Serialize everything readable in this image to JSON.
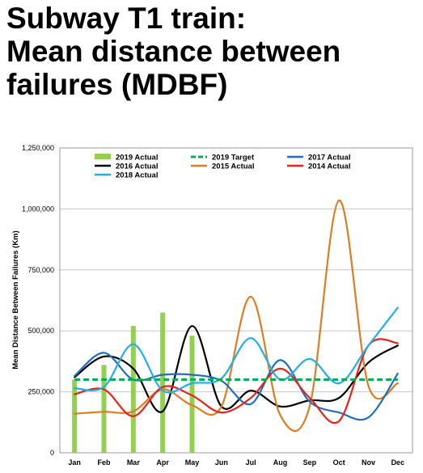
{
  "title_lines": [
    "Subway T1 train:",
    "Mean distance between",
    "failures (MDBF)"
  ],
  "chart_data": {
    "type": "line",
    "ylabel": "Mean Distance Between Failures (Km)",
    "xlabel": "",
    "ylim": [
      0,
      1250000
    ],
    "yticks": [
      0,
      250000,
      500000,
      750000,
      1000000,
      1250000
    ],
    "ytick_labels": [
      "0",
      "250,000",
      "500,000",
      "750,000",
      "1,000,000",
      "1,250,000"
    ],
    "categories": [
      "Jan",
      "Feb",
      "Mar",
      "Apr",
      "May",
      "Jun",
      "Jul",
      "Aug",
      "Sep",
      "Oct",
      "Nov",
      "Dec"
    ],
    "grid": true,
    "legend_placement": "top",
    "bars": {
      "name": "2019 Actual",
      "color": "#92d050",
      "values": [
        300000,
        360000,
        520000,
        575000,
        480000,
        null,
        null,
        null,
        null,
        null,
        null,
        null
      ]
    },
    "target": {
      "name": "2019 Target",
      "color": "#00b050",
      "value": 300000
    },
    "series": [
      {
        "name": "2016 Actual",
        "color": "#000000",
        "values": [
          310000,
          395000,
          345000,
          170000,
          520000,
          190000,
          255000,
          190000,
          215000,
          225000,
          370000,
          440000
        ]
      },
      {
        "name": "2015 Actual",
        "color": "#e07b20",
        "values": [
          160000,
          168000,
          170000,
          260000,
          195000,
          190000,
          640000,
          155000,
          190000,
          1035000,
          275000,
          285000
        ]
      },
      {
        "name": "2017 Actual",
        "color": "#1f6fc0",
        "values": [
          315000,
          410000,
          300000,
          320000,
          320000,
          295000,
          200000,
          380000,
          210000,
          165000,
          145000,
          325000
        ]
      },
      {
        "name": "2014 Actual",
        "color": "#e8231b",
        "values": [
          240000,
          260000,
          150000,
          270000,
          235000,
          165000,
          225000,
          345000,
          225000,
          130000,
          440000,
          450000
        ]
      },
      {
        "name": "2018 Actual",
        "color": "#22aee8",
        "values": [
          265000,
          270000,
          445000,
          255000,
          285000,
          305000,
          470000,
          300000,
          385000,
          285000,
          440000,
          595000
        ]
      }
    ]
  }
}
